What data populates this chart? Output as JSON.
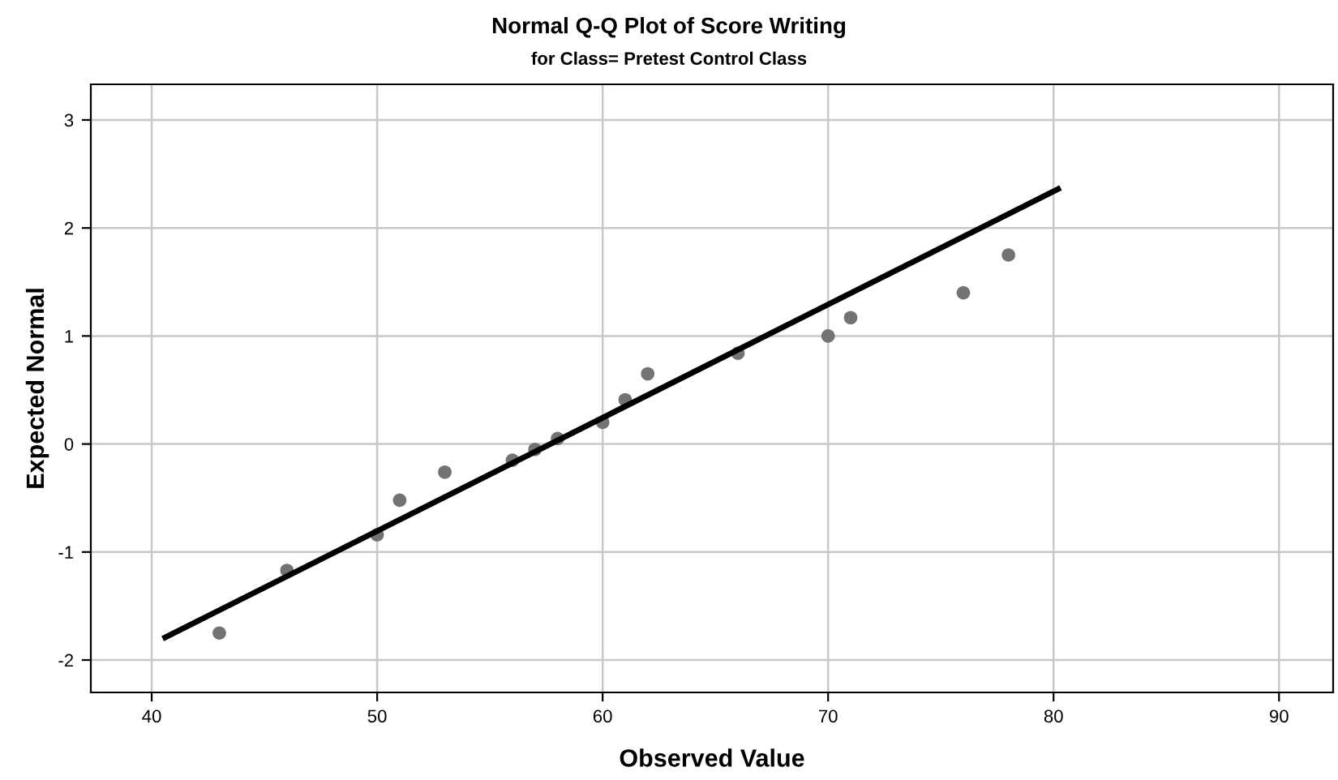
{
  "chart_data": {
    "type": "scatter",
    "title": "Normal Q-Q Plot of Score Writing",
    "subtitle": "for Class= Pretest Control Class",
    "xlabel": "Observed Value",
    "ylabel": "Expected Normal",
    "xlim": [
      37.3,
      92.4
    ],
    "ylim": [
      -2.3,
      3.33
    ],
    "xticks": [
      40,
      50,
      60,
      70,
      80,
      90
    ],
    "yticks": [
      {
        "value": -2,
        "label": "-2"
      },
      {
        "value": -1,
        "label": "-1"
      },
      0,
      1,
      2,
      3
    ],
    "grid": true,
    "series": [
      {
        "marker": "circle",
        "color": "#737373",
        "x": [
          43,
          46,
          50,
          51,
          53,
          56,
          57,
          58,
          60,
          61,
          62,
          66,
          70,
          71,
          76,
          78
        ],
        "values": [
          -1.75,
          -1.17,
          -0.84,
          -0.52,
          -0.26,
          -0.15,
          -0.05,
          0.05,
          0.2,
          0.41,
          0.65,
          0.84,
          1.0,
          1.17,
          1.4,
          1.75
        ]
      },
      {
        "type": "line",
        "marker": "none",
        "color": "#000000",
        "x": [
          40.6,
          80.2
        ],
        "values": [
          -1.79,
          2.36
        ]
      }
    ]
  }
}
